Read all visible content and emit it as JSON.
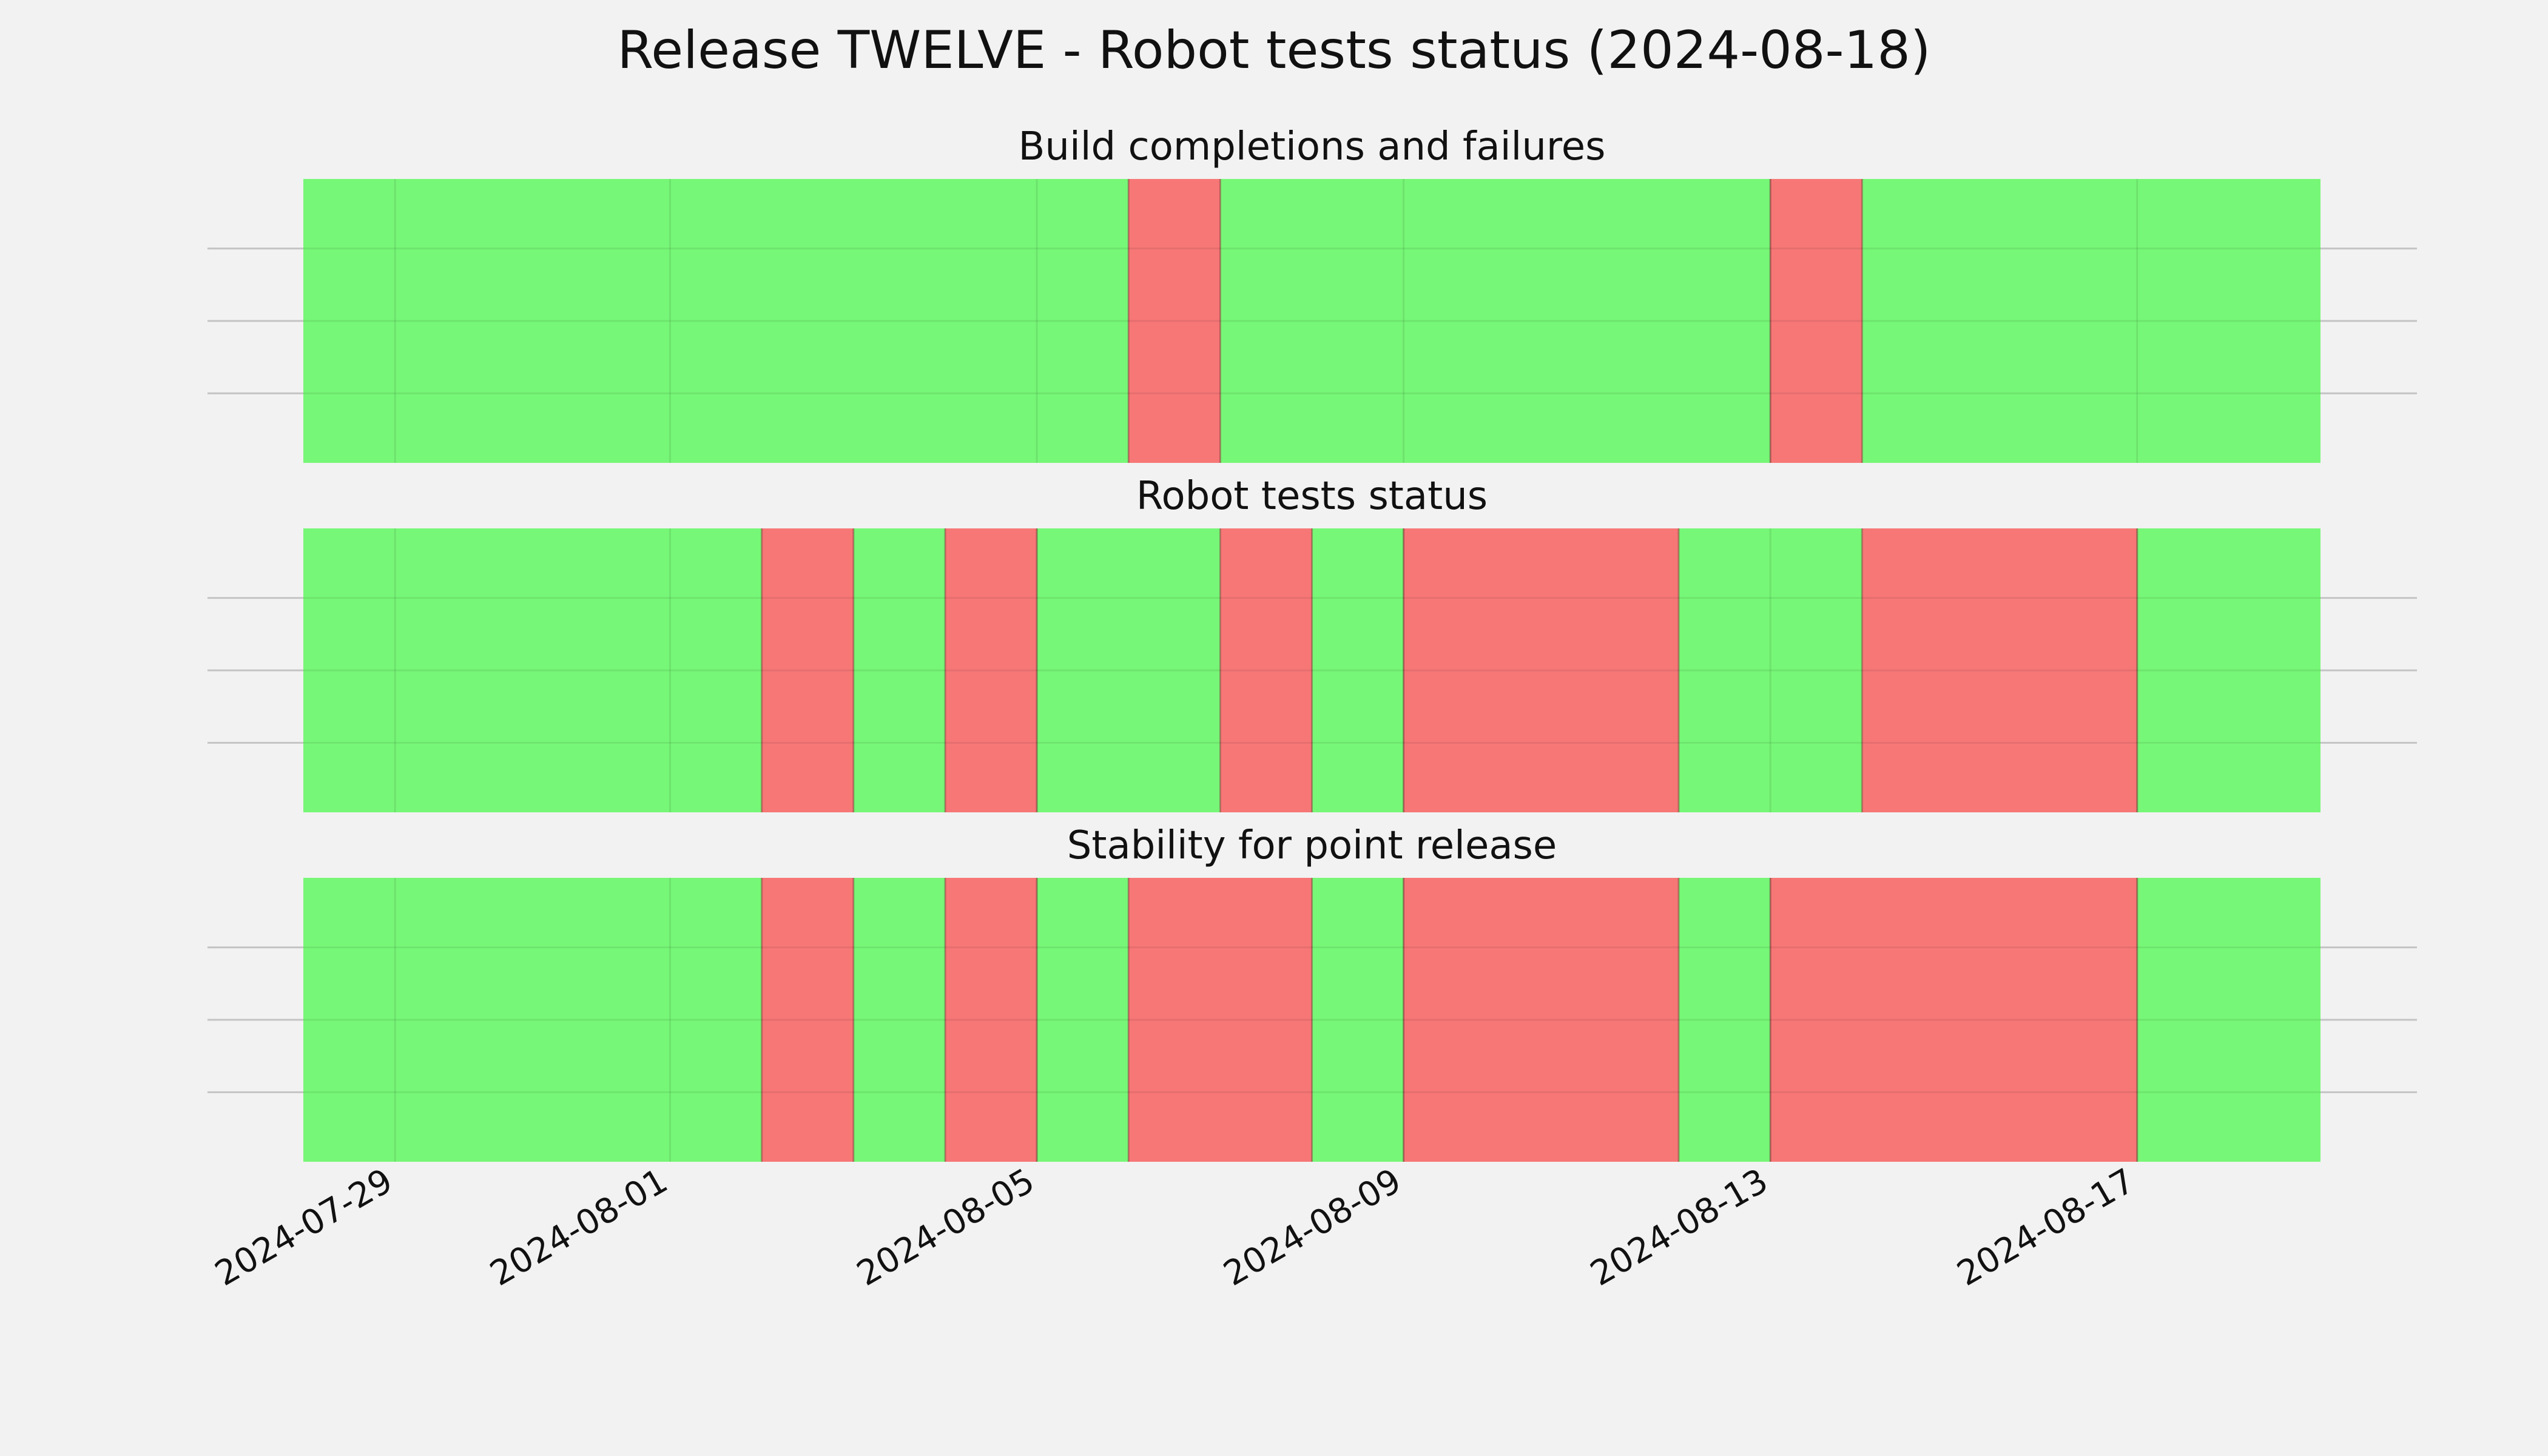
{
  "chart_data": {
    "type": "timeline",
    "title": "Release TWELVE - Robot tests status (2024-08-18)",
    "xlim": [
      "2024-07-28",
      "2024-08-19"
    ],
    "x_ticks": [
      "2024-07-29",
      "2024-08-01",
      "2024-08-05",
      "2024-08-09",
      "2024-08-13",
      "2024-08-17"
    ],
    "colors": {
      "pass": "#77f777",
      "fail": "#f77777"
    },
    "panels": [
      {
        "name": "Build completions and failures",
        "segments": [
          {
            "start": "2024-07-28",
            "end": "2024-08-06",
            "status": "pass"
          },
          {
            "start": "2024-08-06",
            "end": "2024-08-07",
            "status": "fail"
          },
          {
            "start": "2024-08-07",
            "end": "2024-08-13",
            "status": "pass"
          },
          {
            "start": "2024-08-13",
            "end": "2024-08-14",
            "status": "fail"
          },
          {
            "start": "2024-08-14",
            "end": "2024-08-19",
            "status": "pass"
          }
        ]
      },
      {
        "name": "Robot tests status",
        "segments": [
          {
            "start": "2024-07-28",
            "end": "2024-08-02",
            "status": "pass"
          },
          {
            "start": "2024-08-02",
            "end": "2024-08-03",
            "status": "fail"
          },
          {
            "start": "2024-08-03",
            "end": "2024-08-04",
            "status": "pass"
          },
          {
            "start": "2024-08-04",
            "end": "2024-08-05",
            "status": "fail"
          },
          {
            "start": "2024-08-05",
            "end": "2024-08-07",
            "status": "pass"
          },
          {
            "start": "2024-08-07",
            "end": "2024-08-08",
            "status": "fail"
          },
          {
            "start": "2024-08-08",
            "end": "2024-08-09",
            "status": "pass"
          },
          {
            "start": "2024-08-09",
            "end": "2024-08-12",
            "status": "fail"
          },
          {
            "start": "2024-08-12",
            "end": "2024-08-14",
            "status": "pass"
          },
          {
            "start": "2024-08-14",
            "end": "2024-08-17",
            "status": "fail"
          },
          {
            "start": "2024-08-17",
            "end": "2024-08-19",
            "status": "pass"
          }
        ]
      },
      {
        "name": "Stability for point release",
        "segments": [
          {
            "start": "2024-07-28",
            "end": "2024-08-02",
            "status": "pass"
          },
          {
            "start": "2024-08-02",
            "end": "2024-08-03",
            "status": "fail"
          },
          {
            "start": "2024-08-03",
            "end": "2024-08-04",
            "status": "pass"
          },
          {
            "start": "2024-08-04",
            "end": "2024-08-05",
            "status": "fail"
          },
          {
            "start": "2024-08-05",
            "end": "2024-08-06",
            "status": "pass"
          },
          {
            "start": "2024-08-06",
            "end": "2024-08-08",
            "status": "fail"
          },
          {
            "start": "2024-08-08",
            "end": "2024-08-09",
            "status": "pass"
          },
          {
            "start": "2024-08-09",
            "end": "2024-08-12",
            "status": "fail"
          },
          {
            "start": "2024-08-12",
            "end": "2024-08-13",
            "status": "pass"
          },
          {
            "start": "2024-08-13",
            "end": "2024-08-17",
            "status": "fail"
          },
          {
            "start": "2024-08-17",
            "end": "2024-08-19",
            "status": "pass"
          }
        ]
      }
    ]
  }
}
